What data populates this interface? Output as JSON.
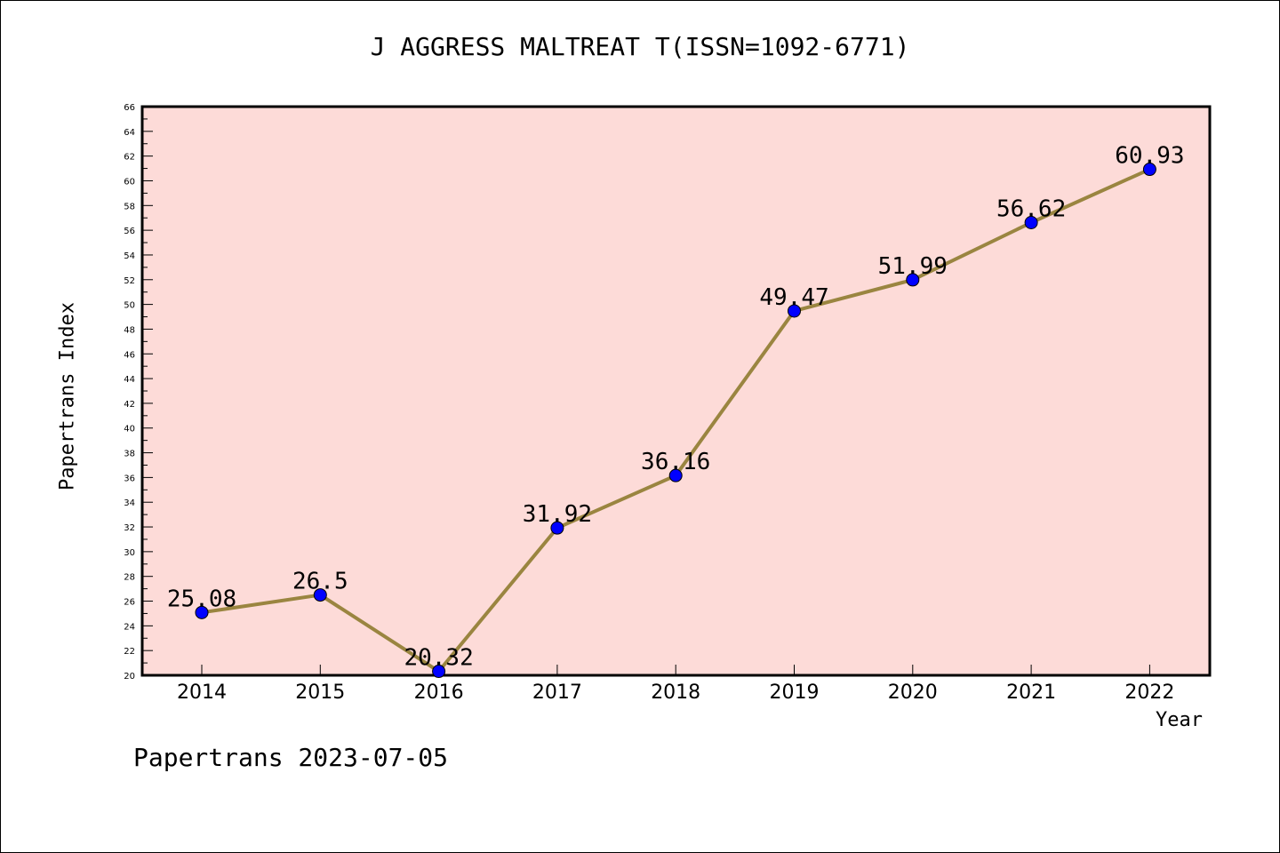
{
  "chart_data": {
    "type": "line",
    "title": "J AGGRESS MALTREAT T(ISSN=1092-6771)",
    "xlabel": "Year",
    "ylabel": "Papertrans Index",
    "categories": [
      "2014",
      "2015",
      "2016",
      "2017",
      "2018",
      "2019",
      "2020",
      "2021",
      "2022"
    ],
    "series": [
      {
        "values": [
          25.08,
          26.5,
          20.32,
          31.92,
          36.16,
          49.47,
          51.99,
          56.62,
          60.93
        ],
        "labels": [
          "25.08",
          "26.5",
          "20.32",
          "31.92",
          "36.16",
          "49.47",
          "51.99",
          "56.62",
          "60.93"
        ]
      }
    ],
    "ylim": [
      20,
      66
    ],
    "yticks": [
      "20",
      "22",
      "24",
      "26",
      "28",
      "30",
      "32",
      "34",
      "36",
      "38",
      "40",
      "42",
      "44",
      "46",
      "48",
      "50",
      "52",
      "54",
      "56",
      "58",
      "60",
      "62",
      "64",
      "66"
    ],
    "grid": false,
    "colors": {
      "plot_background": "#fddbd8",
      "line": "#9a8540",
      "marker": "#0000ff"
    }
  },
  "footer": "Papertrans 2023-07-05"
}
